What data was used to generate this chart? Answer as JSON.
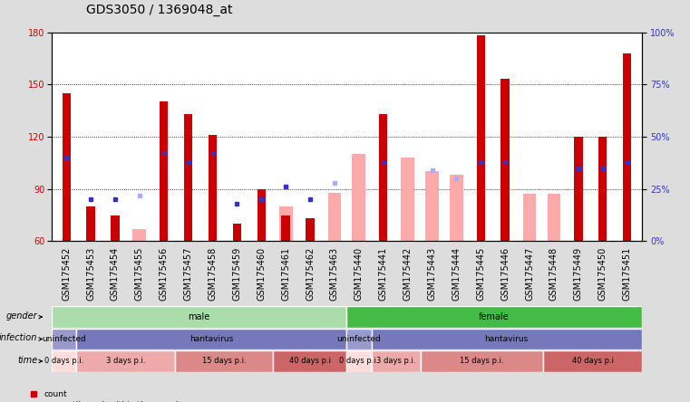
{
  "title": "GDS3050 / 1369048_at",
  "samples": [
    "GSM175452",
    "GSM175453",
    "GSM175454",
    "GSM175455",
    "GSM175456",
    "GSM175457",
    "GSM175458",
    "GSM175459",
    "GSM175460",
    "GSM175461",
    "GSM175462",
    "GSM175463",
    "GSM175440",
    "GSM175441",
    "GSM175442",
    "GSM175443",
    "GSM175444",
    "GSM175445",
    "GSM175446",
    "GSM175447",
    "GSM175448",
    "GSM175449",
    "GSM175450",
    "GSM175451"
  ],
  "count_values": [
    145,
    80,
    75,
    null,
    140,
    133,
    121,
    70,
    90,
    75,
    73,
    null,
    null,
    133,
    null,
    null,
    null,
    178,
    153,
    null,
    null,
    120,
    120,
    168
  ],
  "rank_values": [
    40,
    20,
    20,
    null,
    42,
    38,
    42,
    18,
    20,
    26,
    20,
    null,
    null,
    38,
    null,
    null,
    null,
    38,
    38,
    null,
    null,
    35,
    35,
    38
  ],
  "absent_value_values": [
    null,
    null,
    null,
    67,
    null,
    null,
    null,
    null,
    null,
    80,
    null,
    88,
    110,
    null,
    108,
    100,
    98,
    null,
    null,
    87,
    87,
    null,
    null,
    null
  ],
  "absent_rank_values": [
    null,
    null,
    null,
    22,
    null,
    null,
    null,
    null,
    null,
    26,
    null,
    28,
    null,
    null,
    null,
    34,
    30,
    null,
    null,
    null,
    null,
    null,
    null,
    null
  ],
  "ylim": [
    60,
    180
  ],
  "yticks": [
    60,
    90,
    120,
    150,
    180
  ],
  "y2lim": [
    0,
    100
  ],
  "y2ticks": [
    0,
    25,
    50,
    75,
    100
  ],
  "count_color": "#cc0000",
  "rank_color": "#3333cc",
  "absent_value_color": "#ffaaaa",
  "absent_rank_color": "#aaaaff",
  "gender_male_color": "#aaddaa",
  "gender_female_color": "#44bb44",
  "infection_uninfected_color": "#9999cc",
  "infection_hantavirus_color": "#7777bb",
  "time_0days_color": "#ffdddd",
  "time_3days_color": "#eeaaaa",
  "time_15days_color": "#dd8888",
  "time_40days_color": "#cc6666",
  "background_color": "#dddddd",
  "plot_bg_color": "#ffffff",
  "tick_fontsize": 7,
  "bar_narrow": 0.35,
  "bar_wide": 0.55
}
